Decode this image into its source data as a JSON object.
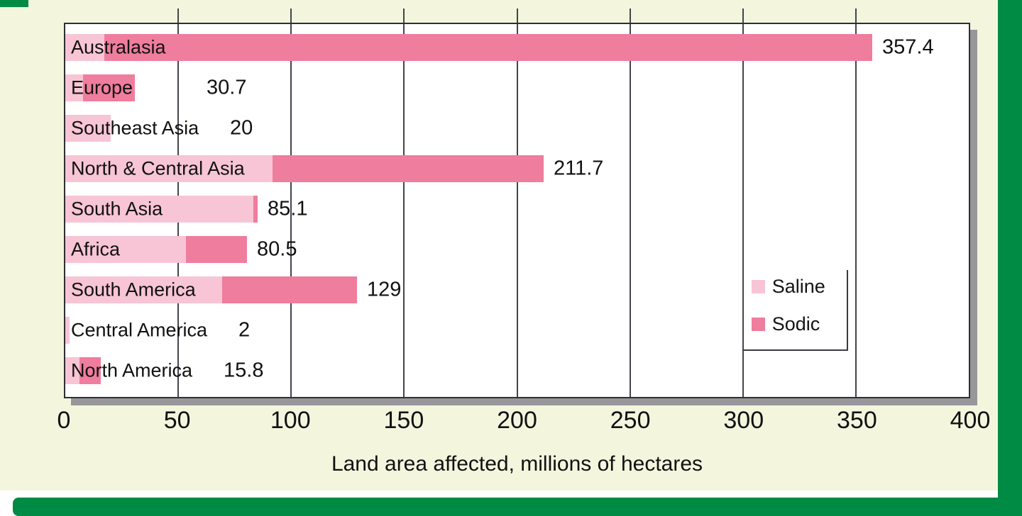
{
  "chart_data": {
    "type": "bar",
    "orientation": "horizontal",
    "stacked": true,
    "title": "",
    "xlabel": "Land area affected, millions of hectares",
    "ylabel": "",
    "xlim": [
      0,
      400
    ],
    "x_ticks": [
      0,
      50,
      100,
      150,
      200,
      250,
      300,
      350,
      400
    ],
    "grid": true,
    "legend_position": "inside-right",
    "categories": [
      "Australasia",
      "Europe",
      "Southeast Asia",
      "North & Central Asia",
      "South Asia",
      "Africa",
      "South America",
      "Central America",
      "North America"
    ],
    "series": [
      {
        "name": "Saline",
        "color": "#f7c5d5",
        "values": [
          17.4,
          7.8,
          20,
          91.6,
          83.3,
          53.5,
          69.4,
          2,
          6.2
        ]
      },
      {
        "name": "Sodic",
        "color": "#ef7d9d",
        "values": [
          340.0,
          22.9,
          0,
          120.1,
          1.8,
          27.0,
          59.6,
          0,
          9.6
        ]
      }
    ],
    "totals": [
      357.4,
      30.7,
      20,
      211.7,
      85.1,
      80.5,
      129,
      2,
      15.8
    ],
    "total_labels": [
      "357.4",
      "30.7",
      "20",
      "211.7",
      "85.1",
      "80.5",
      "129",
      "2",
      "15.8"
    ]
  },
  "palette": {
    "saline": "#f7c5d5",
    "sodic": "#ef7d9d",
    "frame_green": "#008b45",
    "background_cream": "#f3f6dd",
    "plot_shadow": "#97979b"
  }
}
